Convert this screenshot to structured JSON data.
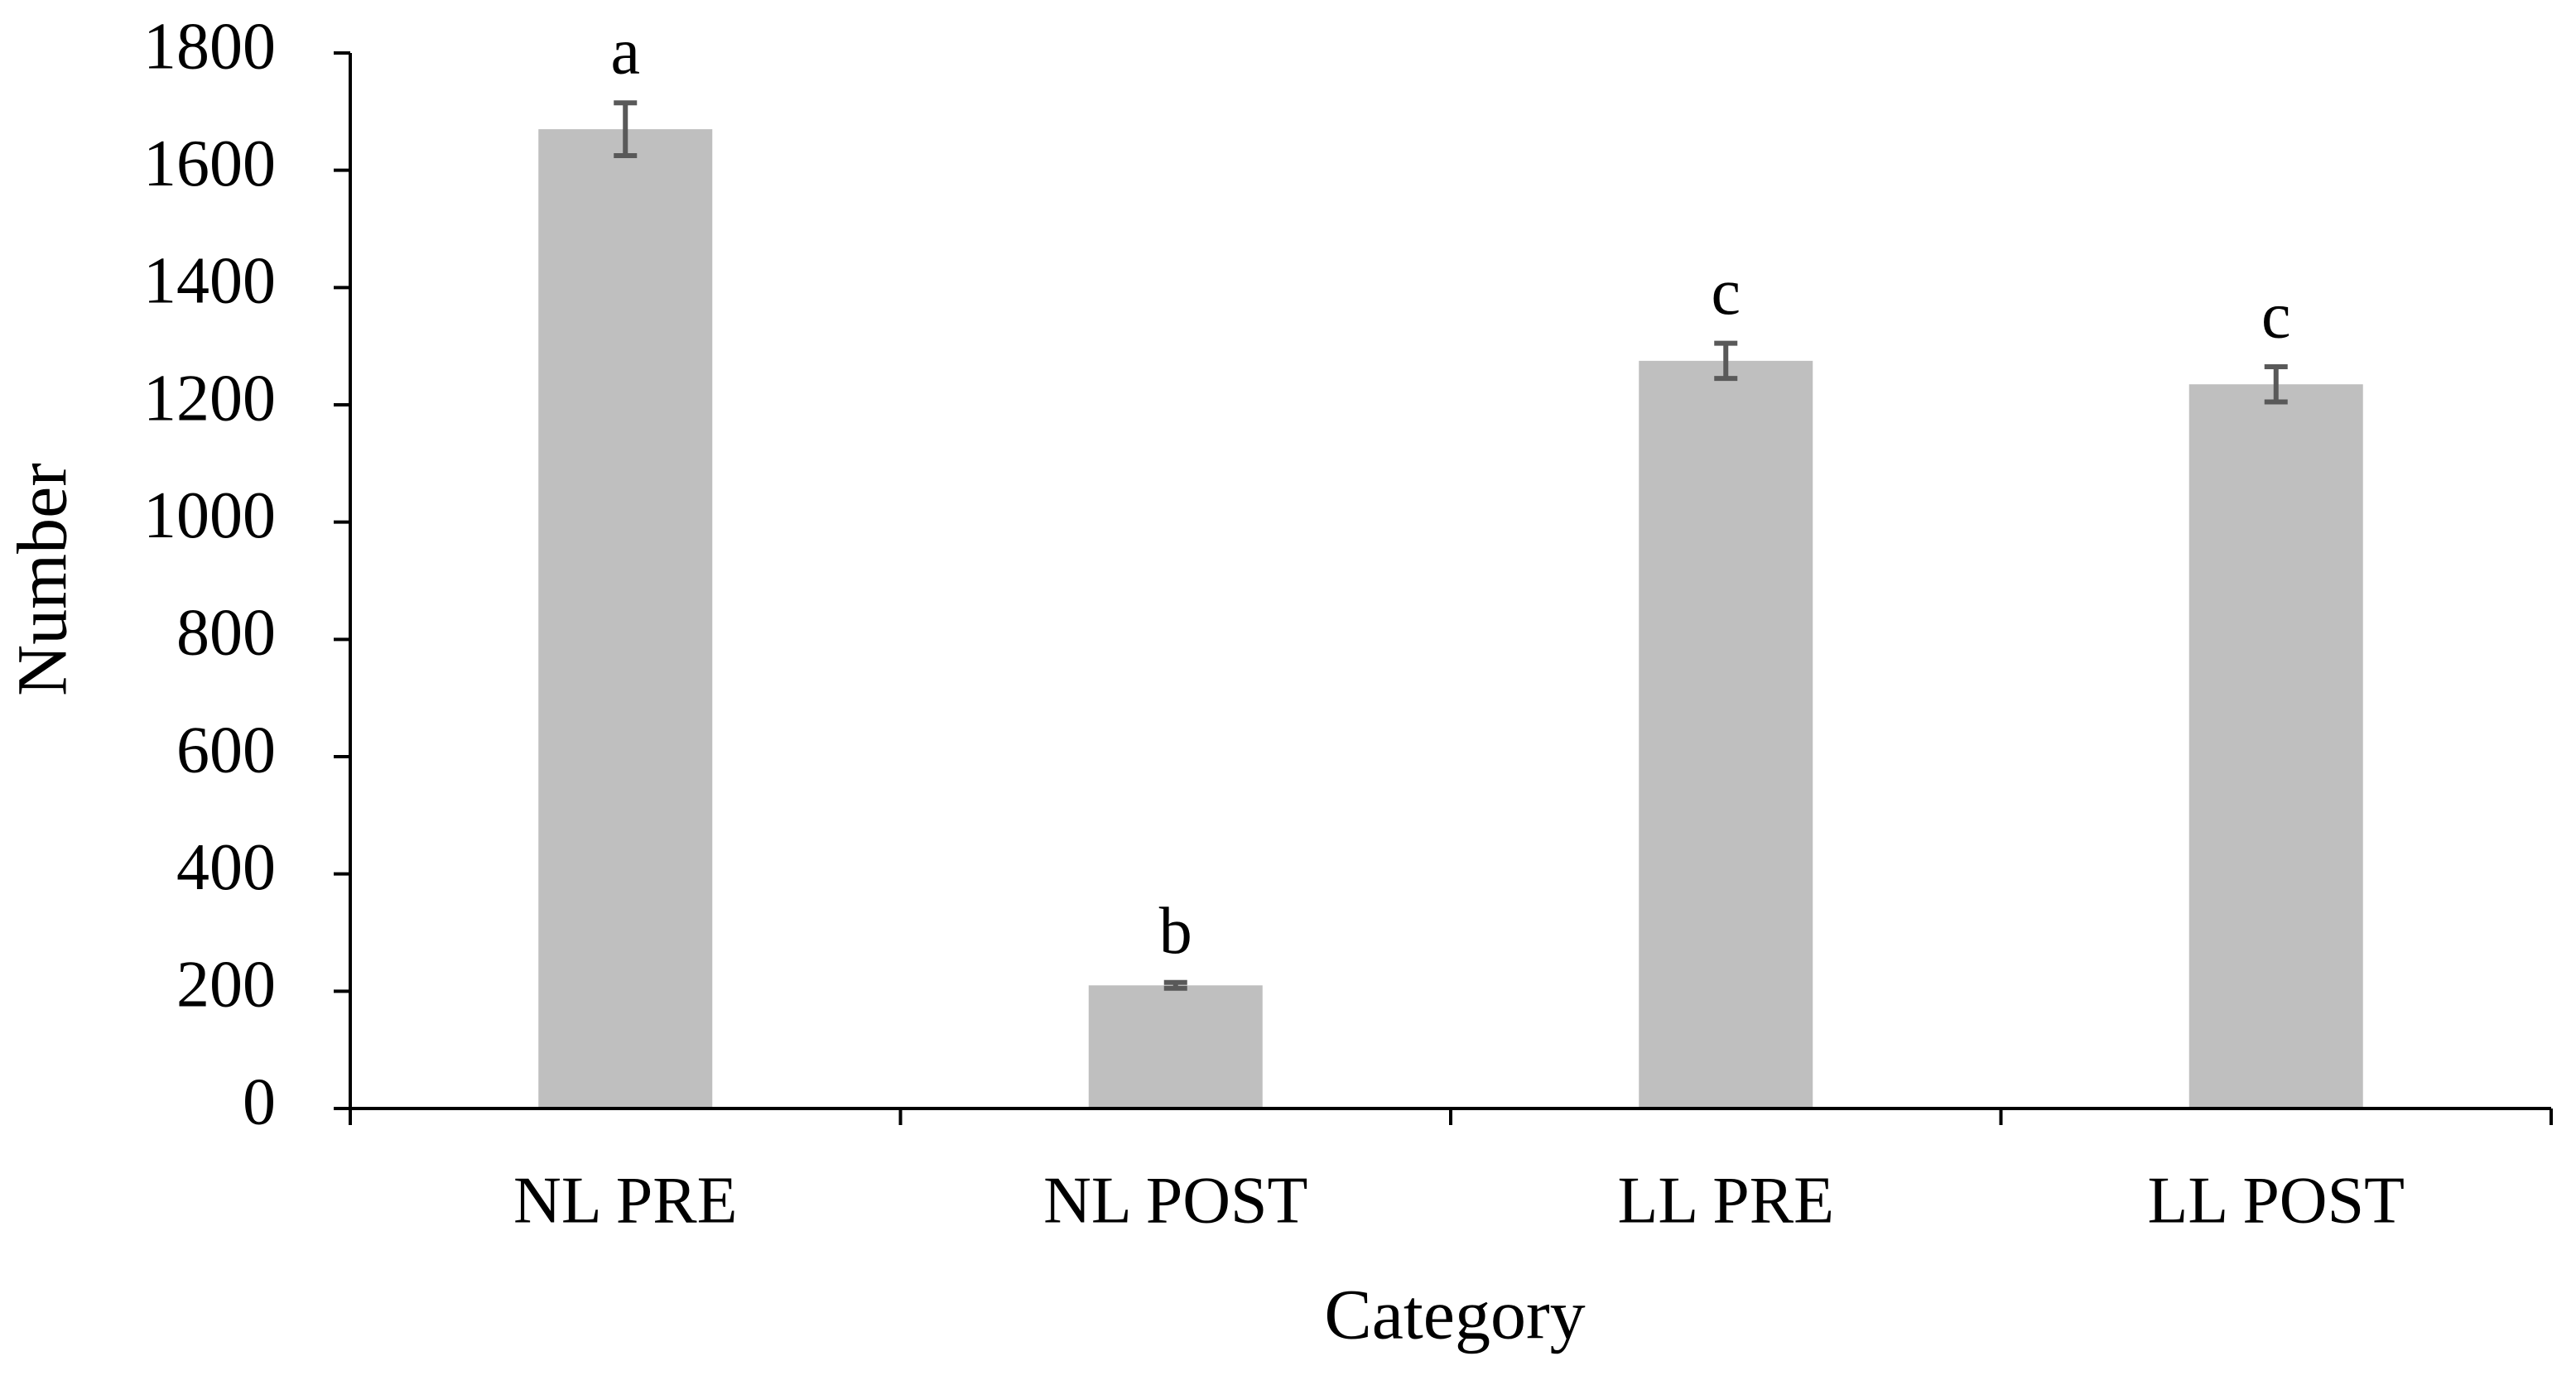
{
  "chart_data": {
    "type": "bar",
    "x_label": "Category",
    "y_label": "Number",
    "categories": [
      "NL PRE",
      "NL POST",
      "LL PRE",
      "LL POST"
    ],
    "values": [
      1670,
      210,
      1275,
      1235
    ],
    "errors": [
      45,
      5,
      30,
      30
    ],
    "letters": [
      "a",
      "b",
      "c",
      "c"
    ],
    "color": "#bfbfbf",
    "error_color": "#595959",
    "ylim": [
      0,
      1800
    ],
    "yticks": [
      0,
      200,
      400,
      600,
      800,
      1000,
      1200,
      1400,
      1600,
      1800
    ],
    "grid": false
  }
}
